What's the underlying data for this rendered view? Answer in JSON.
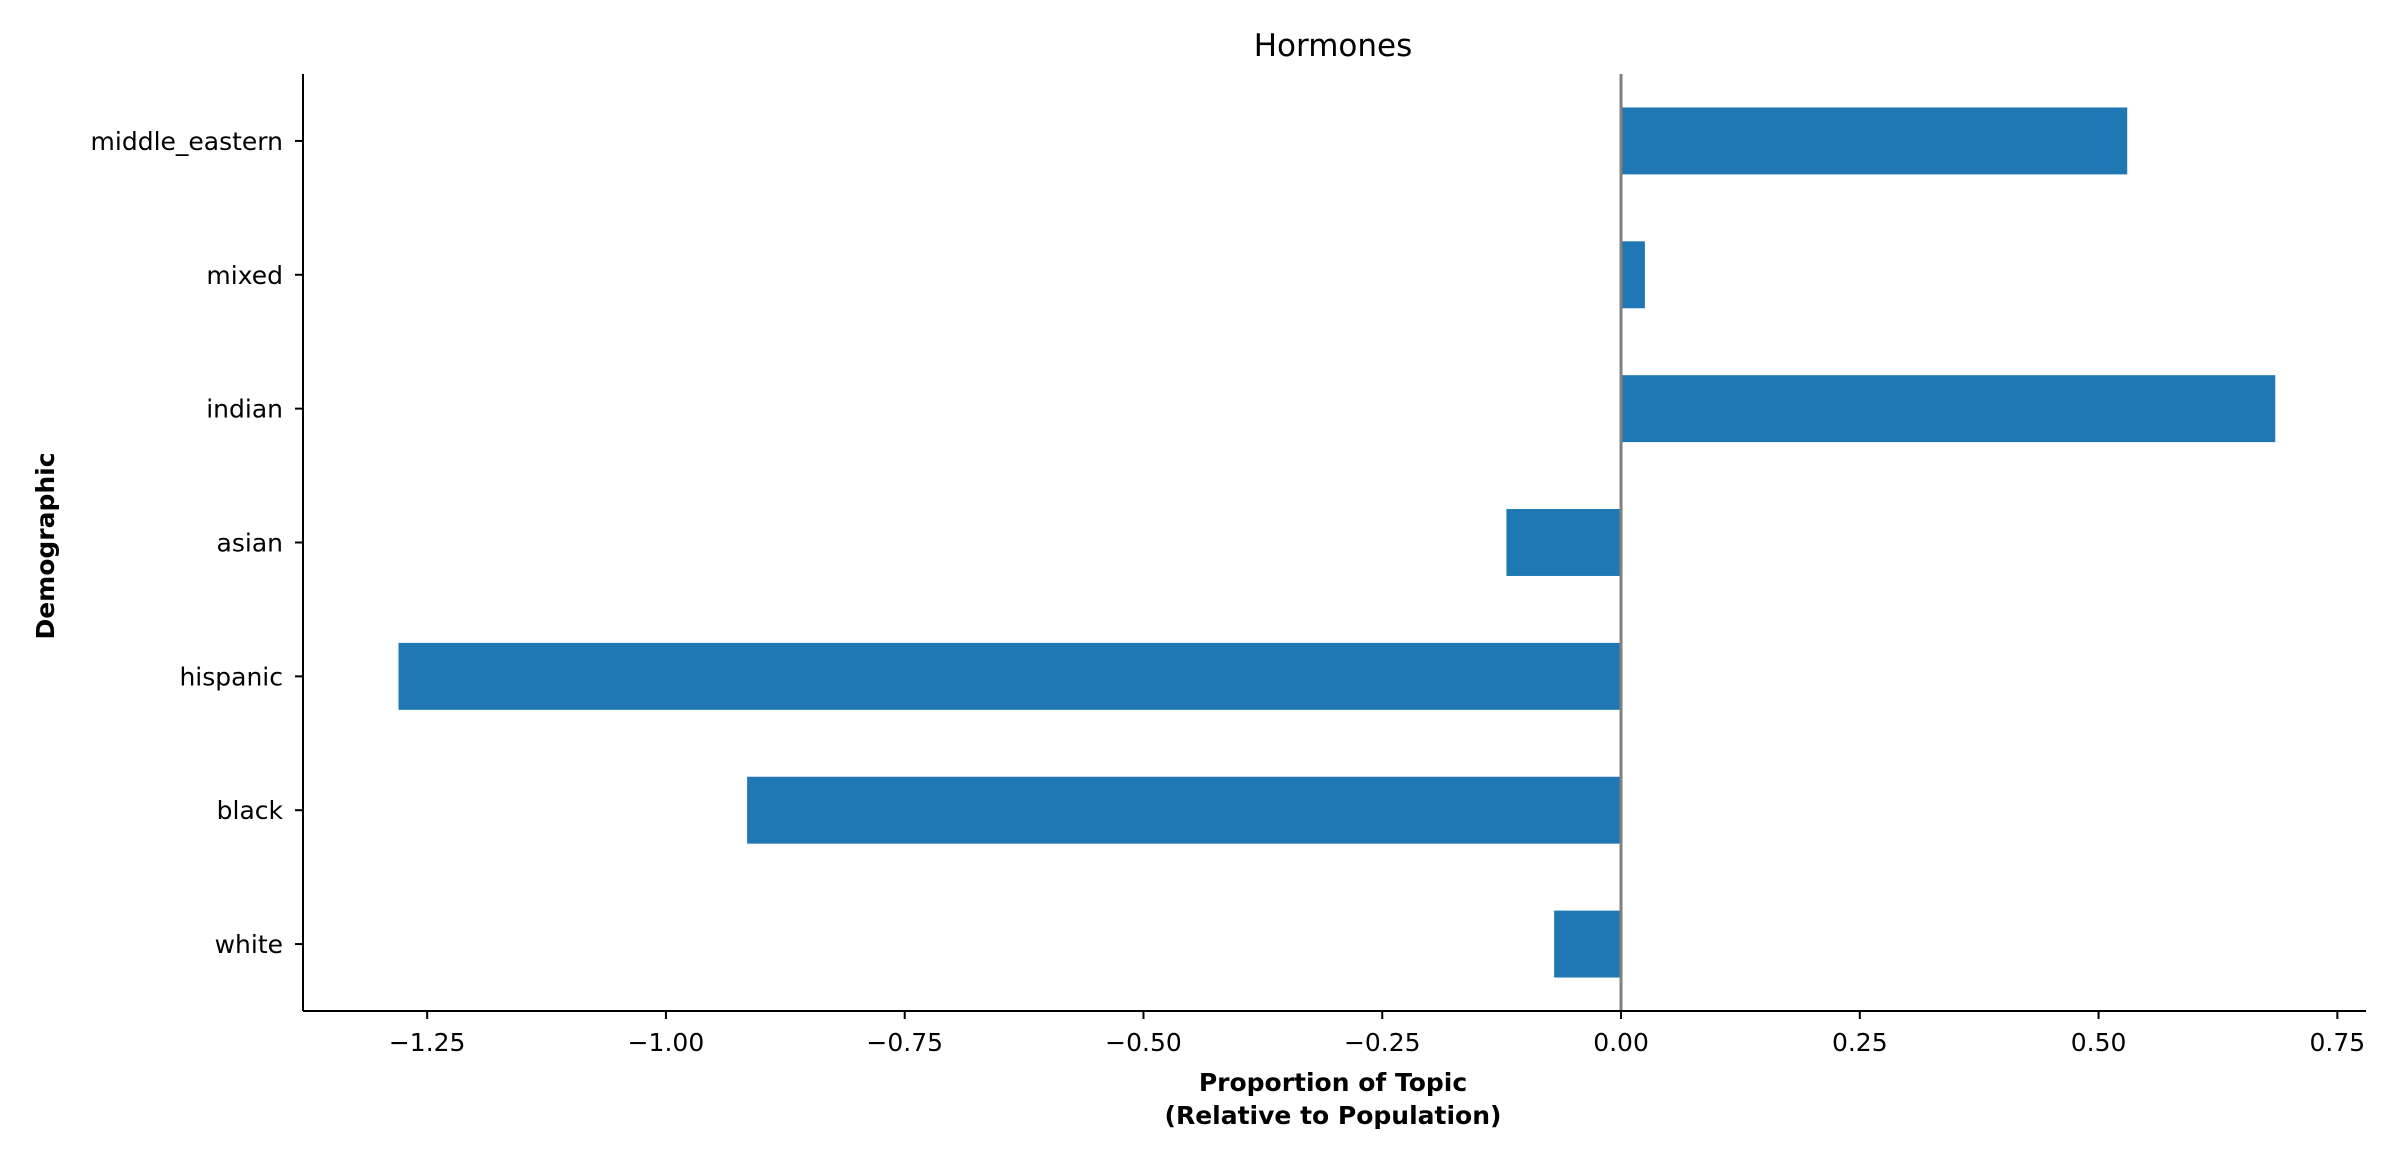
{
  "chart_data": {
    "type": "bar",
    "orientation": "horizontal",
    "title": "Hormones",
    "xlabel": [
      "Proportion of Topic",
      "(Relative to Population)"
    ],
    "ylabel": "Demographic",
    "categories": [
      "white",
      "black",
      "hispanic",
      "asian",
      "indian",
      "mixed",
      "middle_eastern"
    ],
    "values": [
      -0.07,
      -0.915,
      -1.28,
      -0.12,
      0.685,
      0.025,
      0.53
    ],
    "xlim": [
      -1.38,
      0.78
    ],
    "xticks": [
      -1.25,
      -1.0,
      -0.75,
      -0.5,
      -0.25,
      0.0,
      0.25,
      0.5,
      0.75
    ],
    "xtick_labels": [
      "−1.25",
      "−1.00",
      "−0.75",
      "−0.50",
      "−0.25",
      "0.00",
      "0.25",
      "0.50",
      "0.75"
    ],
    "zero_line": true,
    "grid": false,
    "colors": {
      "bar": "#1f77b4",
      "zero_line": "#808080"
    }
  }
}
